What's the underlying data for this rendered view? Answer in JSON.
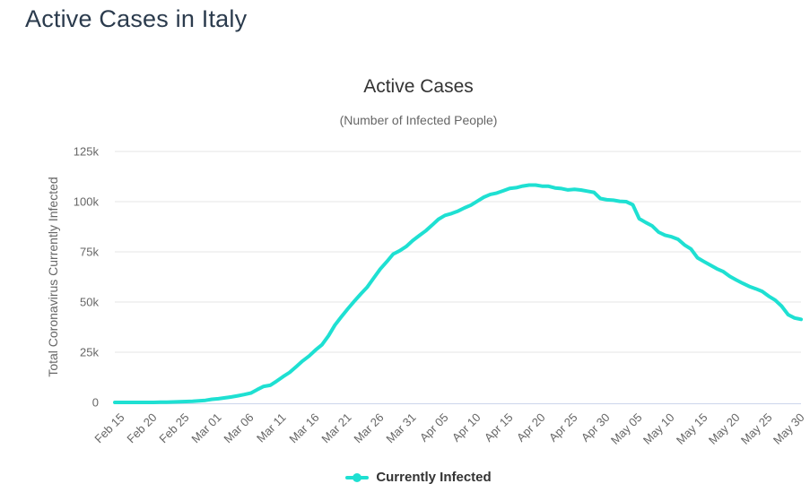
{
  "page": {
    "title": "Active Cases in Italy"
  },
  "chart": {
    "title": "Active Cases",
    "subtitle": "(Number of Infected People)",
    "y_axis_title": "Total Coronavirus Currently Infected",
    "legend_label": "Currently Infected",
    "colors": {
      "line": "#1ee0d2",
      "grid": "#e6e6e6",
      "axis_line": "#ccd6eb",
      "labels": "#666666",
      "title_text": "#333333",
      "page_title_text": "#2b3b4d"
    }
  },
  "chart_data": {
    "type": "line",
    "title": "Active Cases",
    "subtitle": "(Number of Infected People)",
    "xlabel": "",
    "ylabel": "Total Coronavirus Currently Infected",
    "ylim": [
      0,
      125000
    ],
    "y_tick_labels": [
      "0",
      "25k",
      "50k",
      "75k",
      "100k",
      "125k"
    ],
    "y_tick_values": [
      0,
      25000,
      50000,
      75000,
      100000,
      125000
    ],
    "x_tick_labels": [
      "Feb 15",
      "Feb 20",
      "Feb 25",
      "Mar 01",
      "Mar 06",
      "Mar 11",
      "Mar 16",
      "Mar 21",
      "Mar 26",
      "Mar 31",
      "Apr 05",
      "Apr 10",
      "Apr 15",
      "Apr 20",
      "Apr 25",
      "Apr 30",
      "May 05",
      "May 10",
      "May 15",
      "May 20",
      "May 25",
      "May 30"
    ],
    "x_tick_interval_days": 5,
    "grid": "horizontal",
    "legend_position": "bottom",
    "x": [
      "Feb 15",
      "Feb 16",
      "Feb 17",
      "Feb 18",
      "Feb 19",
      "Feb 20",
      "Feb 21",
      "Feb 22",
      "Feb 23",
      "Feb 24",
      "Feb 25",
      "Feb 26",
      "Feb 27",
      "Feb 28",
      "Feb 29",
      "Mar 01",
      "Mar 02",
      "Mar 03",
      "Mar 04",
      "Mar 05",
      "Mar 06",
      "Mar 07",
      "Mar 08",
      "Mar 09",
      "Mar 10",
      "Mar 11",
      "Mar 12",
      "Mar 13",
      "Mar 14",
      "Mar 15",
      "Mar 16",
      "Mar 17",
      "Mar 18",
      "Mar 19",
      "Mar 20",
      "Mar 21",
      "Mar 22",
      "Mar 23",
      "Mar 24",
      "Mar 25",
      "Mar 26",
      "Mar 27",
      "Mar 28",
      "Mar 29",
      "Mar 30",
      "Mar 31",
      "Apr 01",
      "Apr 02",
      "Apr 03",
      "Apr 04",
      "Apr 05",
      "Apr 06",
      "Apr 07",
      "Apr 08",
      "Apr 09",
      "Apr 10",
      "Apr 11",
      "Apr 12",
      "Apr 13",
      "Apr 14",
      "Apr 15",
      "Apr 16",
      "Apr 17",
      "Apr 18",
      "Apr 19",
      "Apr 20",
      "Apr 21",
      "Apr 22",
      "Apr 23",
      "Apr 24",
      "Apr 25",
      "Apr 26",
      "Apr 27",
      "Apr 28",
      "Apr 29",
      "Apr 30",
      "May 01",
      "May 02",
      "May 03",
      "May 04",
      "May 05",
      "May 06",
      "May 07",
      "May 08",
      "May 09",
      "May 10",
      "May 11",
      "May 12",
      "May 13",
      "May 14",
      "May 15",
      "May 16",
      "May 17",
      "May 18",
      "May 19",
      "May 20",
      "May 21",
      "May 22",
      "May 23",
      "May 24",
      "May 25",
      "May 26",
      "May 27",
      "May 28",
      "May 29",
      "May 30",
      "May 31"
    ],
    "series": [
      {
        "name": "Currently Infected",
        "color": "#1ee0d2",
        "values": [
          3,
          3,
          3,
          3,
          3,
          3,
          20,
          79,
          150,
          221,
          311,
          438,
          593,
          821,
          1049,
          1577,
          1835,
          2263,
          2706,
          3296,
          3916,
          4636,
          6387,
          7985,
          8514,
          10590,
          12839,
          14955,
          17750,
          20603,
          23073,
          26062,
          28710,
          33190,
          38549,
          42681,
          46638,
          50418,
          54030,
          57521,
          62013,
          66414,
          70065,
          73880,
          75528,
          77635,
          80572,
          83049,
          85388,
          88274,
          91246,
          93187,
          94067,
          95262,
          96877,
          98273,
          100269,
          102253,
          103616,
          104291,
          105418,
          106607,
          106962,
          107771,
          108257,
          108237,
          107709,
          107699,
          106848,
          106527,
          105847,
          106103,
          105813,
          105205,
          104657,
          101551,
          100943,
          100704,
          100179,
          99980,
          98467,
          91528,
          89624,
          87961,
          84842,
          83324,
          82488,
          81266,
          78457,
          76440,
          72070,
          70187,
          68351,
          66553,
          65129,
          62752,
          60960,
          59322,
          57752,
          56594,
          55300,
          52942,
          50966,
          47986,
          43691,
          42075,
          41367
        ]
      }
    ]
  }
}
